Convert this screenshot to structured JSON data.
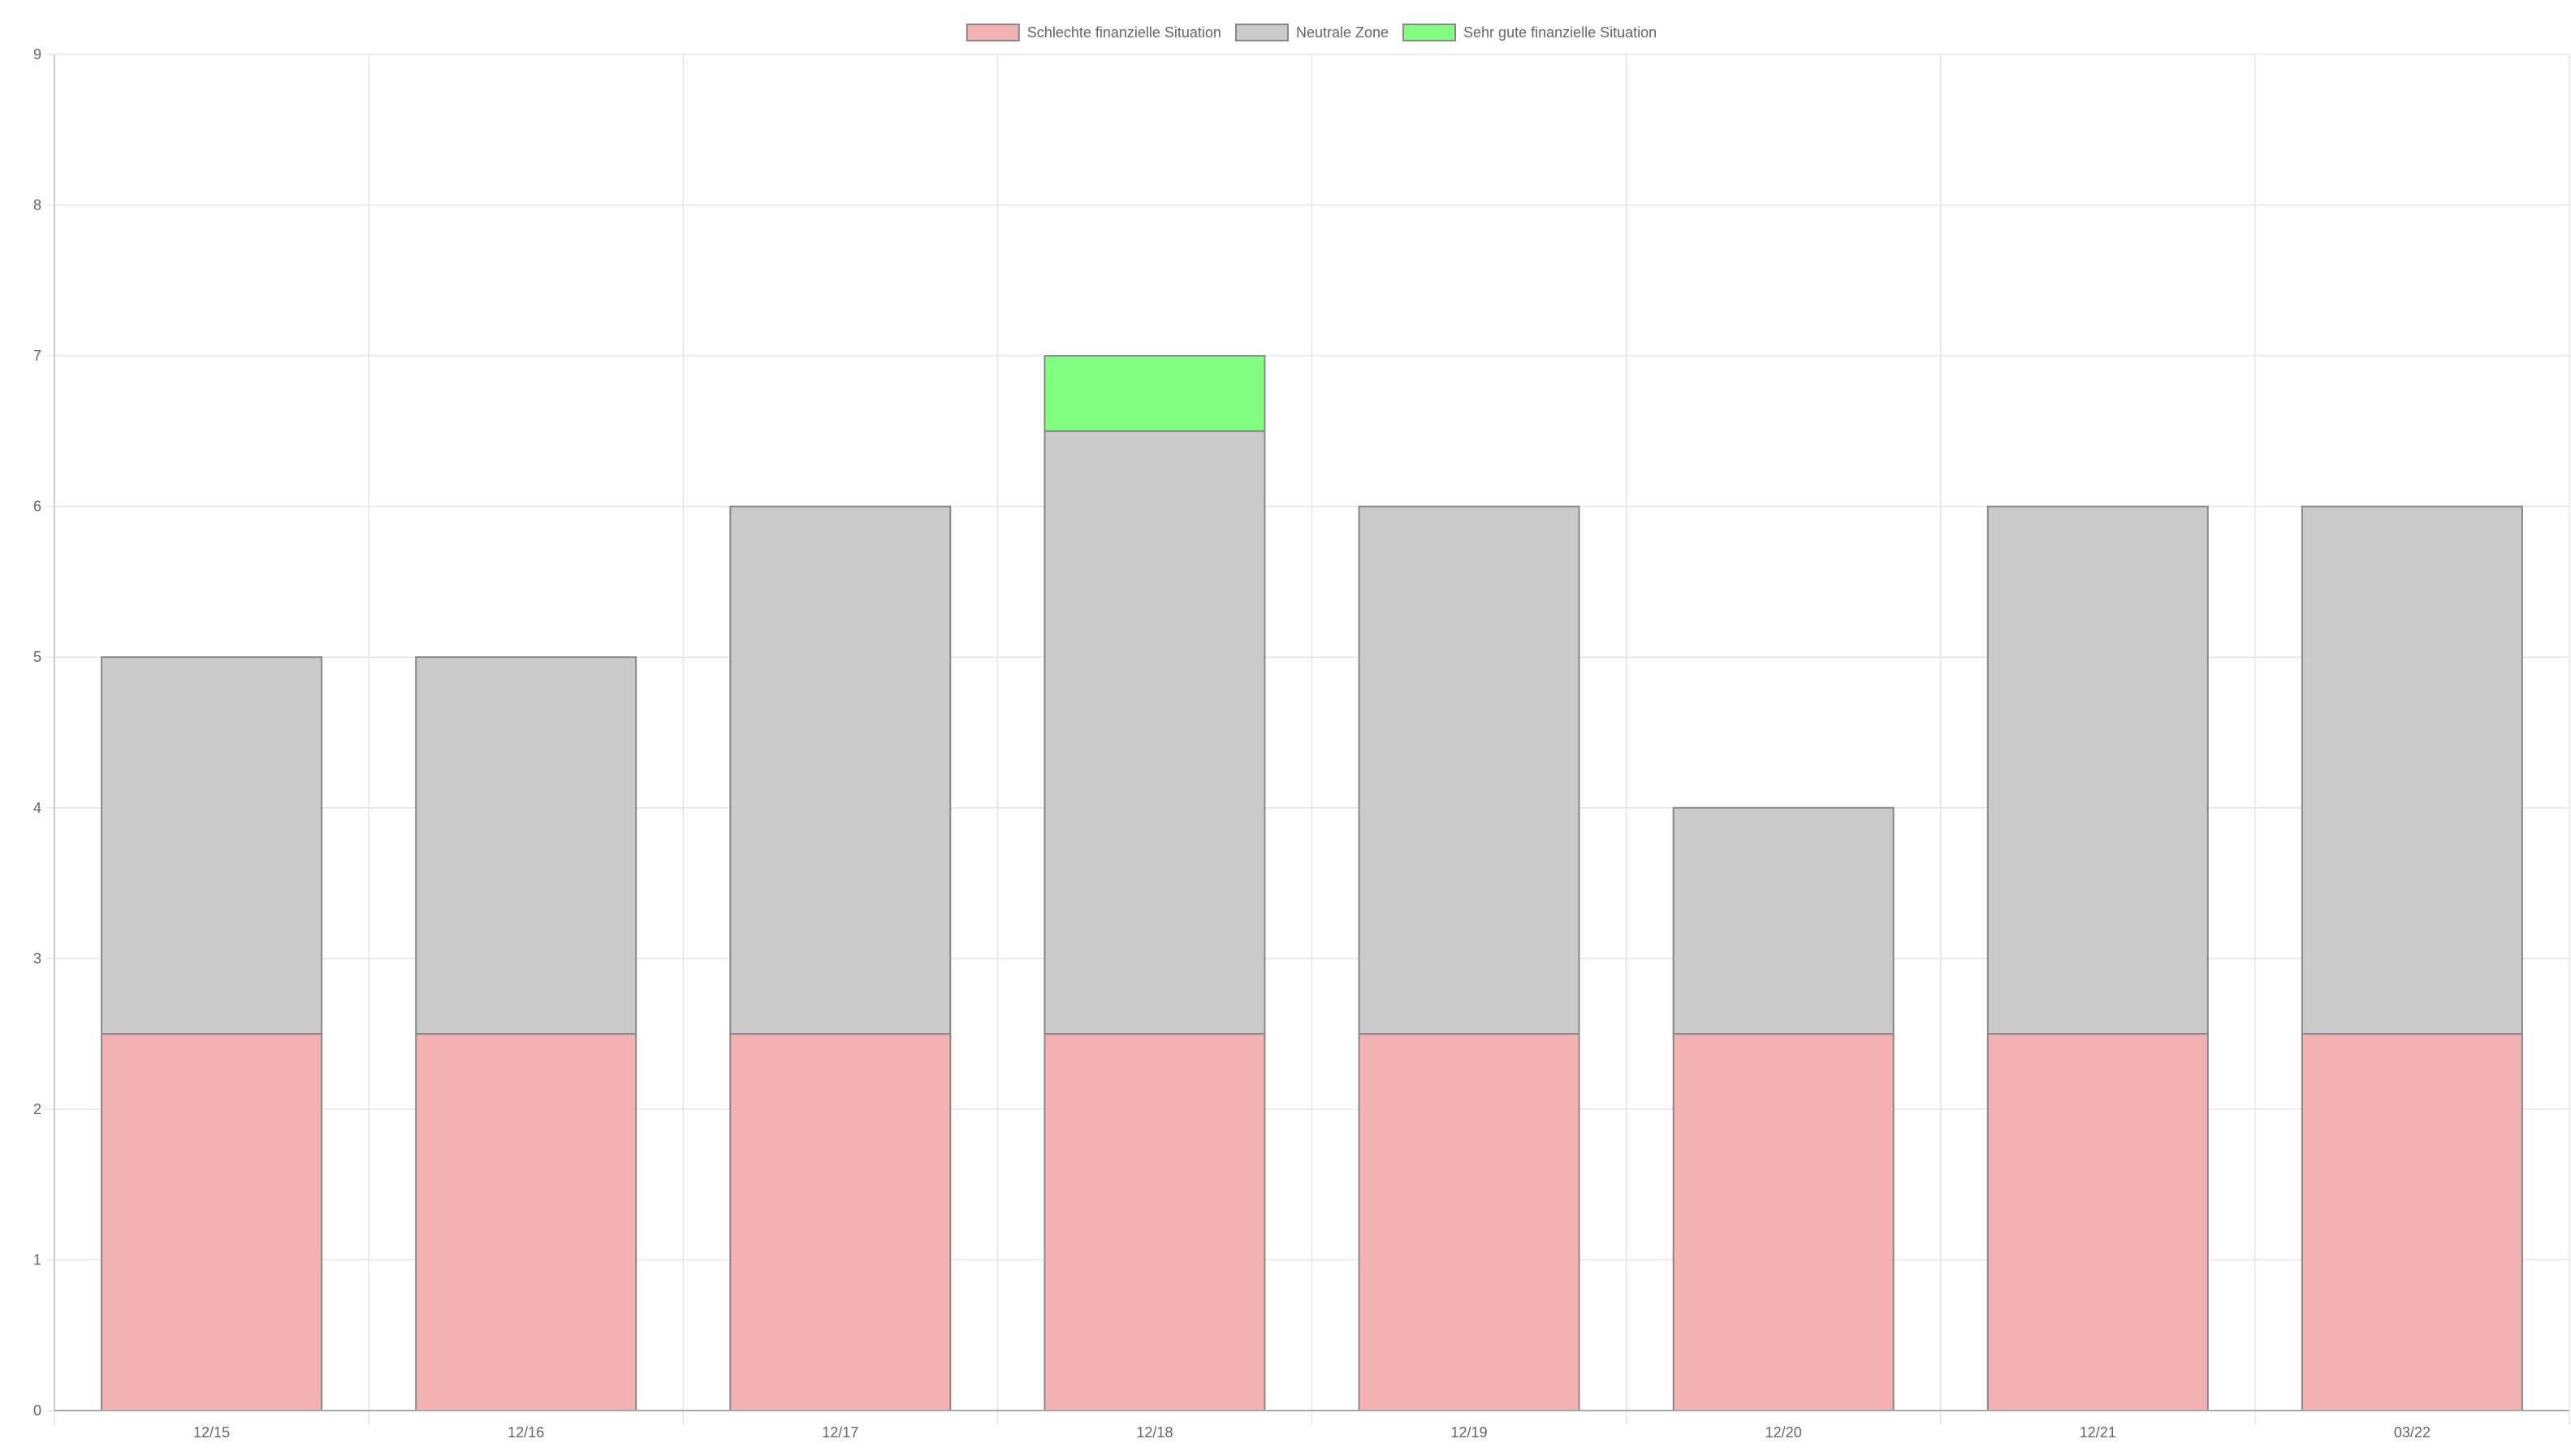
{
  "chart_data": {
    "type": "bar",
    "stacked": true,
    "categories": [
      "12/15",
      "12/16",
      "12/17",
      "12/18",
      "12/19",
      "12/20",
      "12/21",
      "03/22"
    ],
    "series": [
      {
        "name": "Schlechte finanzielle Situation",
        "values": [
          2.5,
          2.5,
          2.5,
          2.5,
          2.5,
          2.5,
          2.5,
          2.5
        ],
        "color": "#f5b2b2",
        "border_color": "#888888"
      },
      {
        "name": "Neutrale Zone",
        "values": [
          2.5,
          2.5,
          3.5,
          4,
          3.5,
          1.5,
          3.5,
          3.5
        ],
        "color": "#cacaca",
        "border_color": "#888888"
      },
      {
        "name": "Sehr gute finanzielle Situation",
        "values": [
          0,
          0,
          0,
          0.5,
          0,
          0,
          0,
          0
        ],
        "color": "#80ff80",
        "border_color": "#888888"
      }
    ],
    "ylim": [
      0,
      9
    ],
    "yticks": [
      "0",
      "1",
      "2",
      "3",
      "4",
      "5",
      "6",
      "7",
      "8",
      "9"
    ],
    "grid": true,
    "legend_position": "top"
  }
}
